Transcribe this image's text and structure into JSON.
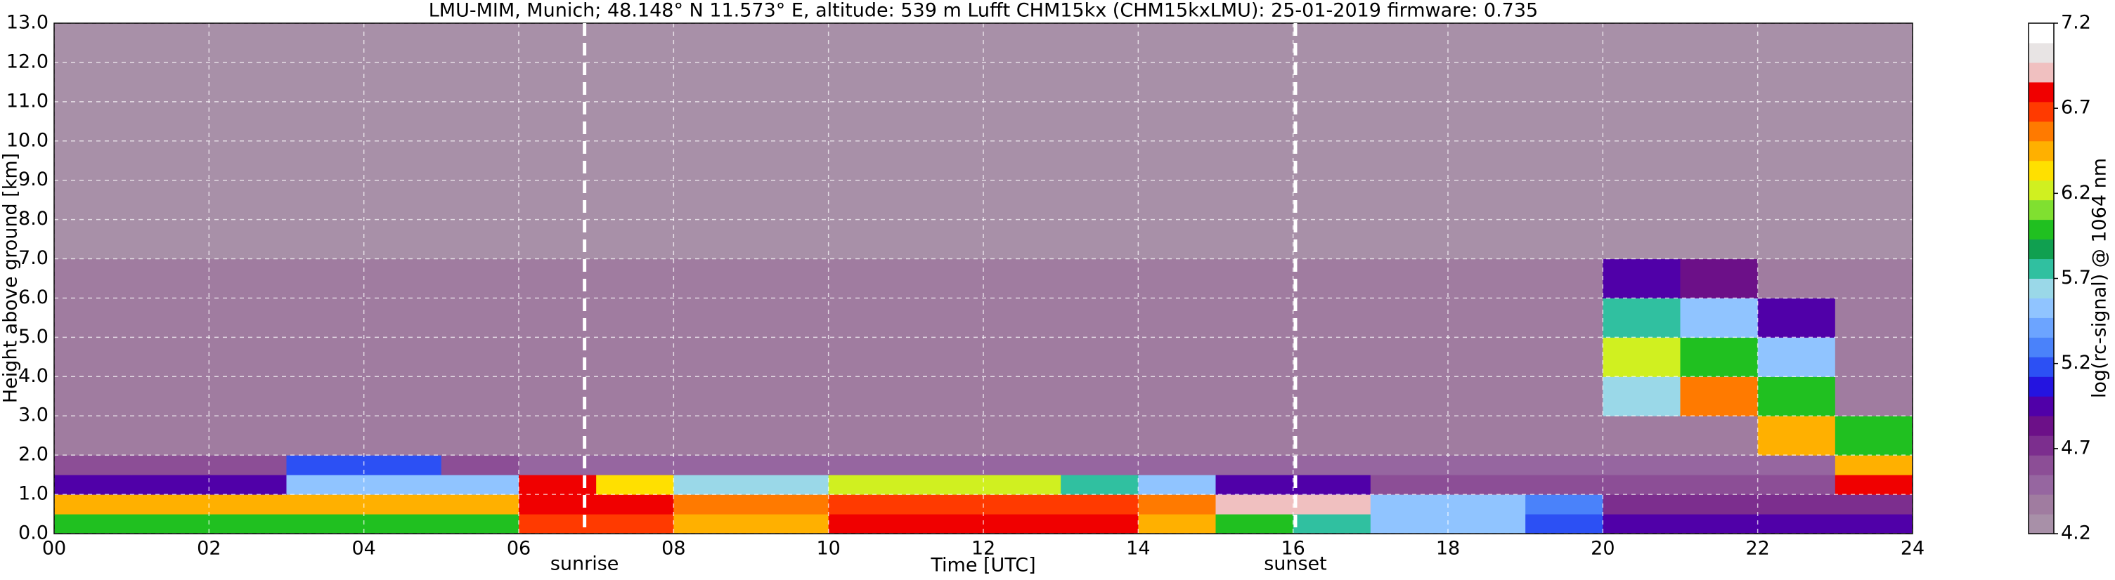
{
  "chart_data": {
    "type": "heatmap",
    "title": "LMU-MIM, Munich; 48.148° N 11.573° E, altitude: 539 m    Lufft CHM15kx (CHM15kxLMU): 25-01-2019    firmware: 0.735",
    "x_label": "Time [UTC]",
    "y_label": "Height above ground [km]",
    "colorbar_label": "log(rc-signal) @ 1064 nm",
    "xlim": [
      0,
      24
    ],
    "xticks": [
      {
        "value": 0,
        "label": "00"
      },
      {
        "value": 2,
        "label": "02"
      },
      {
        "value": 4,
        "label": "04"
      },
      {
        "value": 6,
        "label": "06"
      },
      {
        "value": 8,
        "label": "08"
      },
      10,
      12,
      14,
      16,
      18,
      20,
      22,
      24
    ],
    "ylim": [
      0,
      13
    ],
    "yticks": [
      {
        "value": 0,
        "label": "0.0"
      },
      {
        "value": 1,
        "label": "1.0"
      },
      {
        "value": 2,
        "label": "2.0"
      },
      {
        "value": 3,
        "label": "3.0"
      },
      {
        "value": 4,
        "label": "4.0"
      },
      {
        "value": 5,
        "label": "5.0"
      },
      {
        "value": 6,
        "label": "6.0"
      },
      {
        "value": 7,
        "label": "7.0"
      },
      {
        "value": 8,
        "label": "8.0"
      },
      {
        "value": 9,
        "label": "9.0"
      },
      {
        "value": 10,
        "label": "10.0"
      },
      {
        "value": 11,
        "label": "11.0"
      },
      {
        "value": 12,
        "label": "12.0"
      },
      {
        "value": 13,
        "label": "13.0"
      }
    ],
    "grid": true,
    "clim": [
      4.2,
      7.2
    ],
    "cticks": [
      4.2,
      4.7,
      5.2,
      5.7,
      6.2,
      6.7,
      7.2
    ],
    "colors": [
      "#a890a8",
      "#a07ca0",
      "#9666a0",
      "#8c4e96",
      "#7c2e8e",
      "#6c1088",
      "#5000a8",
      "#2414e0",
      "#2c50f4",
      "#4a82fa",
      "#6ca4ff",
      "#90c4ff",
      "#9ad8e8",
      "#30c0a0",
      "#10a050",
      "#20c020",
      "#80e030",
      "#d0f020",
      "#ffe000",
      "#ffb000",
      "#ff7a00",
      "#ff3a00",
      "#f00000",
      "#f0c0c0",
      "#e8e4e4",
      "#ffffff"
    ],
    "x_edges": [
      0,
      1,
      2,
      3,
      4,
      5,
      6,
      7,
      8,
      9,
      10,
      11,
      12,
      13,
      14,
      15,
      16,
      17,
      18,
      19,
      20,
      21,
      22,
      23,
      24
    ],
    "y_edges": [
      0,
      0.5,
      1,
      1.5,
      2,
      3,
      4,
      5,
      6,
      7,
      13
    ],
    "z": [
      [
        6.0,
        6.0,
        6.0,
        6.0,
        6.0,
        6.0,
        6.7,
        6.7,
        6.5,
        6.5,
        6.8,
        6.8,
        6.8,
        6.8,
        6.5,
        6.0,
        5.7,
        5.5,
        5.5,
        5.2,
        4.9,
        4.9,
        4.9,
        4.9
      ],
      [
        6.4,
        6.4,
        6.4,
        6.4,
        6.4,
        6.4,
        6.8,
        6.8,
        6.6,
        6.6,
        6.7,
        6.7,
        6.7,
        6.7,
        6.6,
        6.9,
        6.9,
        5.5,
        5.5,
        5.3,
        4.7,
        4.7,
        4.7,
        4.7
      ],
      [
        4.9,
        4.9,
        4.9,
        5.5,
        5.5,
        5.5,
        6.8,
        6.3,
        5.6,
        5.6,
        6.2,
        6.2,
        6.2,
        5.8,
        5.5,
        4.9,
        4.9,
        4.6,
        4.6,
        4.6,
        4.6,
        4.6,
        4.6,
        6.8
      ],
      [
        4.6,
        4.6,
        4.6,
        5.2,
        5.2,
        4.6,
        4.5,
        4.5,
        4.5,
        4.5,
        4.5,
        4.5,
        4.5,
        4.5,
        4.5,
        4.5,
        4.5,
        4.5,
        4.5,
        4.5,
        4.5,
        4.5,
        4.5,
        6.5
      ],
      [
        4.4,
        4.4,
        4.4,
        4.4,
        4.4,
        4.4,
        4.4,
        4.4,
        4.4,
        4.4,
        4.4,
        4.4,
        4.4,
        4.4,
        4.4,
        4.4,
        4.4,
        4.4,
        4.4,
        4.4,
        4.4,
        4.4,
        6.4,
        6.0
      ],
      [
        4.4,
        4.4,
        4.4,
        4.4,
        4.4,
        4.4,
        4.4,
        4.4,
        4.4,
        4.4,
        4.4,
        4.4,
        4.4,
        4.4,
        4.4,
        4.4,
        4.4,
        4.4,
        4.4,
        4.4,
        5.6,
        6.6,
        6.0,
        4.4
      ],
      [
        4.4,
        4.4,
        4.4,
        4.4,
        4.4,
        4.4,
        4.4,
        4.4,
        4.4,
        4.4,
        4.4,
        4.4,
        4.4,
        4.4,
        4.4,
        4.4,
        4.4,
        4.4,
        4.4,
        4.4,
        6.2,
        6.0,
        5.5,
        4.4
      ],
      [
        4.4,
        4.4,
        4.4,
        4.4,
        4.4,
        4.4,
        4.4,
        4.4,
        4.4,
        4.4,
        4.4,
        4.4,
        4.4,
        4.4,
        4.4,
        4.4,
        4.4,
        4.4,
        4.4,
        4.4,
        5.8,
        5.5,
        5.0,
        4.4
      ],
      [
        4.4,
        4.4,
        4.4,
        4.4,
        4.4,
        4.4,
        4.4,
        4.4,
        4.4,
        4.4,
        4.4,
        4.4,
        4.4,
        4.4,
        4.4,
        4.4,
        4.4,
        4.4,
        4.4,
        4.4,
        5.0,
        4.8,
        4.4,
        4.4
      ],
      [
        4.3,
        4.3,
        4.3,
        4.3,
        4.3,
        4.3,
        4.3,
        4.3,
        4.3,
        4.3,
        4.3,
        4.3,
        4.3,
        4.3,
        4.3,
        4.3,
        4.3,
        4.3,
        4.3,
        4.3,
        4.3,
        4.3,
        4.3,
        4.3
      ]
    ],
    "events": [
      {
        "label": "sunrise",
        "x": 6.85
      },
      {
        "label": "sunset",
        "x": 16.03
      }
    ]
  }
}
